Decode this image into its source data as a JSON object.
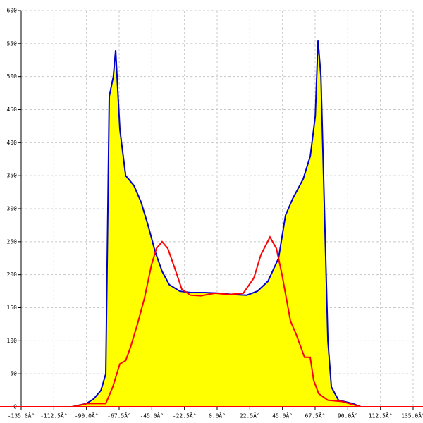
{
  "chart_data": {
    "type": "area",
    "xlim": [
      -135,
      135
    ],
    "ylim": [
      0,
      600
    ],
    "xticks": [
      {
        "value": -135,
        "label": "-135.0Â°"
      },
      {
        "value": -112.5,
        "label": "-112.5Â°"
      },
      {
        "value": -90,
        "label": "-90.0Â°"
      },
      {
        "value": -67.5,
        "label": "-67.5Â°"
      },
      {
        "value": -45,
        "label": "-45.0Â°"
      },
      {
        "value": -22.5,
        "label": "-22.5Â°"
      },
      {
        "value": 0,
        "label": "0.0Â°"
      },
      {
        "value": 22.5,
        "label": "22.5Â°"
      },
      {
        "value": 45,
        "label": "45.0Â°"
      },
      {
        "value": 67.5,
        "label": "67.5Â°"
      },
      {
        "value": 90,
        "label": "90.0Â°"
      },
      {
        "value": 112.5,
        "label": "112.5Â°"
      },
      {
        "value": 135,
        "label": "135.0Â°"
      }
    ],
    "yticks": [
      0,
      50,
      100,
      150,
      200,
      250,
      300,
      350,
      400,
      450,
      500,
      550,
      600
    ],
    "grid": true,
    "series": [
      {
        "color": "#0000cc",
        "fill": "#ffff00",
        "x": [
          -100,
          -90,
          -85,
          -80,
          -76.7,
          -74.3,
          -71.5,
          -69.9,
          -67,
          -63,
          -57.3,
          -52.4,
          -47.6,
          -42.7,
          -37.9,
          -33,
          -25.7,
          -18.4,
          -8.7,
          1,
          10.7,
          20.4,
          27.7,
          35,
          42.3,
          47.1,
          52,
          59.3,
          64.2,
          67.6,
          69.5,
          71.5,
          73.9,
          76.3,
          78.7,
          83.6,
          93.3,
          99.1
        ],
        "values": [
          0,
          5,
          12,
          25,
          50,
          470,
          500,
          540,
          420,
          350,
          335,
          310,
          275,
          235,
          205,
          185,
          175,
          173,
          173,
          172,
          170,
          169,
          175,
          190,
          225,
          290,
          315,
          345,
          380,
          440,
          555,
          500,
          300,
          100,
          30,
          10,
          5,
          0
        ]
      },
      {
        "color": "#ff0000",
        "x": [
          -100,
          -89,
          -76.7,
          -71.9,
          -67,
          -63,
          -59.7,
          -54.9,
          -50,
          -45.2,
          -41.8,
          -37.9,
          -34,
          -29.2,
          -24.3,
          -18.4,
          -11.2,
          -1.5,
          8.3,
          18,
          25.3,
          30.1,
          36.4,
          40.8,
          44.7,
          50.5,
          54.4,
          60.2,
          64.1,
          66.5,
          69.9,
          76.3,
          86,
          99.1
        ],
        "values": [
          0,
          5,
          5,
          30,
          65,
          70,
          90,
          125,
          165,
          215,
          240,
          250,
          240,
          210,
          178,
          169,
          168,
          172,
          170,
          172,
          195,
          230,
          257,
          240,
          200,
          130,
          110,
          75,
          75,
          40,
          20,
          10,
          8,
          0
        ]
      }
    ]
  }
}
